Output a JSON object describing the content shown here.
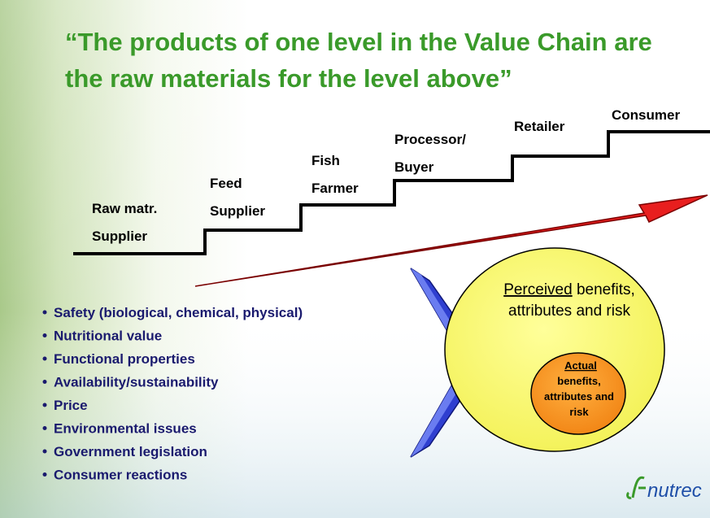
{
  "title_lines": [
    "“The products of one level in the Value Chain are",
    "the raw materials for the level above”"
  ],
  "steps": [
    {
      "lines": [
        "Raw matr.",
        "Supplier"
      ]
    },
    {
      "lines": [
        "Feed",
        "Supplier"
      ]
    },
    {
      "lines": [
        "Fish",
        "Farmer"
      ]
    },
    {
      "lines": [
        "Processor/",
        "Buyer"
      ]
    },
    {
      "lines": [
        "Retailer"
      ]
    },
    {
      "lines": [
        "Consumer"
      ]
    }
  ],
  "bullets": [
    "Safety (biological, chemical, physical)",
    "Nutritional value",
    "Functional properties",
    "Availability/sustainability",
    "Price",
    "Environmental issues",
    "Government legislation",
    "Consumer reactions"
  ],
  "perceived": {
    "underlined": "Perceived",
    "rest": "benefits,",
    "line2": "attributes and risk"
  },
  "actual": {
    "underlined": "Actual",
    "lines": [
      "benefits,",
      "attributes and",
      "risk"
    ]
  },
  "logo": "nutrec"
}
